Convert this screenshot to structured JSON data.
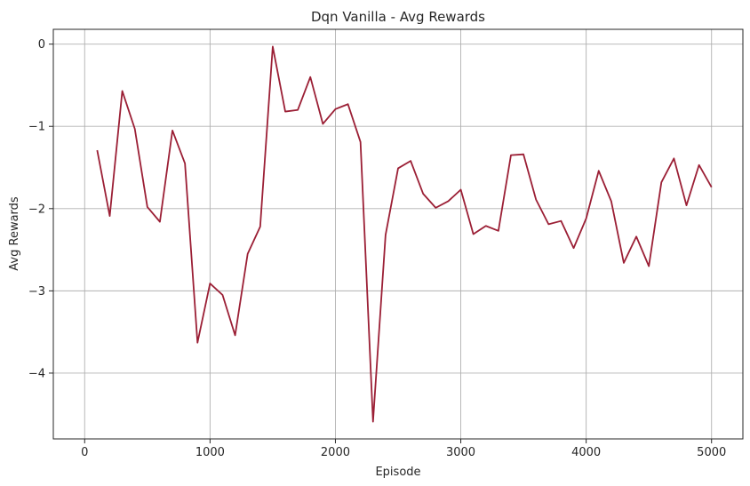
{
  "chart_data": {
    "type": "line",
    "title": "Dqn Vanilla - Avg Rewards",
    "xlabel": "Episode",
    "ylabel": "Avg Rewards",
    "xlim": [
      -250,
      5250
    ],
    "ylim": [
      -4.8,
      0.18
    ],
    "xticks": [
      0,
      1000,
      2000,
      3000,
      4000,
      5000
    ],
    "yticks": [
      0,
      -1,
      -2,
      -3,
      -4
    ],
    "grid": true,
    "series": [
      {
        "color": "#9b1f35",
        "x": [
          100,
          200,
          300,
          400,
          500,
          600,
          700,
          800,
          900,
          1000,
          1100,
          1200,
          1300,
          1400,
          1500,
          1600,
          1700,
          1800,
          1900,
          2000,
          2100,
          2200,
          2300,
          2400,
          2500,
          2600,
          2700,
          2800,
          2900,
          3000,
          3100,
          3200,
          3300,
          3400,
          3500,
          3600,
          3700,
          3800,
          3900,
          4000,
          4100,
          4200,
          4300,
          4400,
          4500,
          4600,
          4700,
          4800,
          4900,
          5000
        ],
        "y": [
          -1.29,
          -2.09,
          -0.57,
          -1.03,
          -1.98,
          -2.16,
          -1.05,
          -1.45,
          -3.63,
          -2.91,
          -3.05,
          -3.54,
          -2.55,
          -2.22,
          -0.03,
          -0.82,
          -0.8,
          -0.4,
          -0.97,
          -0.79,
          -0.73,
          -1.19,
          -4.59,
          -2.32,
          -1.51,
          -1.42,
          -1.82,
          -1.99,
          -1.91,
          -1.77,
          -2.31,
          -2.21,
          -2.27,
          -1.35,
          -1.34,
          -1.89,
          -2.19,
          -2.15,
          -2.48,
          -2.12,
          -1.54,
          -1.91,
          -2.66,
          -2.34,
          -2.7,
          -1.68,
          -1.39,
          -1.96,
          -1.47,
          -1.74
        ]
      }
    ]
  }
}
